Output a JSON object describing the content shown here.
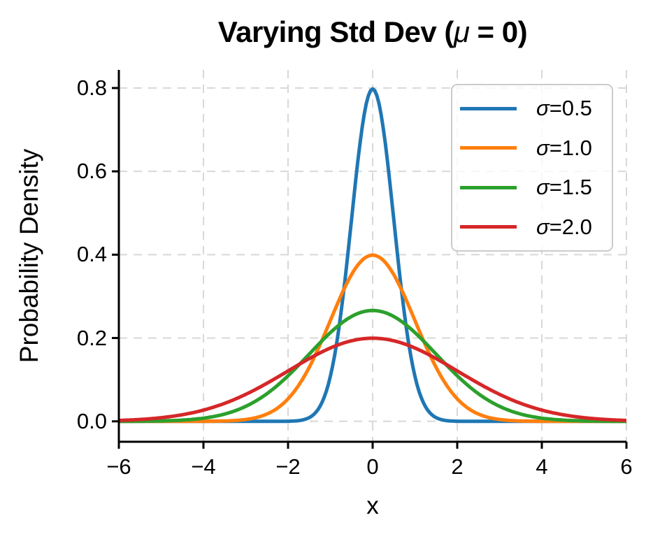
{
  "chart_data": {
    "type": "line",
    "title": {
      "text": "Varying Std Dev (μ = 0)",
      "prefix": "Varying Std Dev (",
      "mu_symbol": "μ",
      "suffix": " = 0)"
    },
    "xlabel": "x",
    "ylabel": "Probability Density",
    "xlim": [
      -6,
      6
    ],
    "ylim": [
      -0.049,
      0.8435
    ],
    "xticks": {
      "values": [
        -6,
        -4,
        -2,
        0,
        2,
        4,
        6
      ],
      "labels": [
        "−6",
        "−4",
        "−2",
        "0",
        "2",
        "4",
        "6"
      ]
    },
    "yticks": {
      "values": [
        0,
        0.2,
        0.4,
        0.6,
        0.8
      ],
      "labels": [
        "0.0",
        "0.2",
        "0.4",
        "0.6",
        "0.8"
      ]
    },
    "grid": {
      "visible": true,
      "line_style": "dashed",
      "color": "#d8d8d8"
    },
    "distribution": "normal_pdf",
    "series": [
      {
        "label": "σ=0.5",
        "label_symbol": "σ",
        "label_value": "=0.5",
        "mu": 0,
        "sigma": 0.5,
        "peak_density": 0.798,
        "color": "#1f77b4"
      },
      {
        "label": "σ=1.0",
        "label_symbol": "σ",
        "label_value": "=1.0",
        "mu": 0,
        "sigma": 1.0,
        "peak_density": 0.399,
        "color": "#ff7f0e"
      },
      {
        "label": "σ=1.5",
        "label_symbol": "σ",
        "label_value": "=1.5",
        "mu": 0,
        "sigma": 1.5,
        "peak_density": 0.266,
        "color": "#2ca02c"
      },
      {
        "label": "σ=2.0",
        "label_symbol": "σ",
        "label_value": "=2.0",
        "mu": 0,
        "sigma": 2.0,
        "peak_density": 0.199,
        "color": "#d62728"
      }
    ],
    "legend": {
      "position": "upper right"
    }
  }
}
